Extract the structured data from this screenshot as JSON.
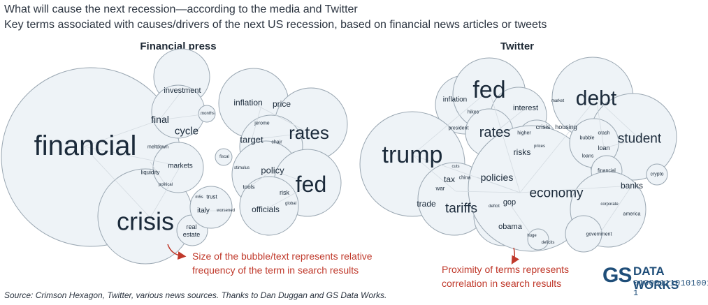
{
  "header": {
    "title": "What will cause the next recession—according to the media and Twitter",
    "subtitle": "Key terms associated with causes/drivers of the next US recession, based on financial news articles or tweets"
  },
  "panels": {
    "press": {
      "title": "Financial press"
    },
    "twitter": {
      "title": "Twitter"
    }
  },
  "notes": {
    "size_note_line1": "Size of the bubble/text represents relative",
    "size_note_line2": "frequency of the term in search results",
    "proximity_note_line1": "Proximity of terms represents",
    "proximity_note_line2": "correlation in search results"
  },
  "source": "Source: Crimson Hexagon, Twitter, various news sources. Thanks to Dan Duggan and GS Data Works.",
  "logo": {
    "mark": "GS",
    "name": "DATA WORKS",
    "binary": "010001110101001 1"
  },
  "colors": {
    "bubble_fill": "#eef3f7",
    "bubble_stroke": "#9aa7b2",
    "note_red": "#c0392b",
    "logo_blue": "#1f4e79"
  },
  "press_terms": [
    "financial",
    "crisis",
    "investment",
    "final",
    "cycle",
    "months",
    "meltdown",
    "markets",
    "liquidity",
    "political",
    "real",
    "estate",
    "m5s",
    "trust",
    "italy",
    "worsened",
    "inflation",
    "price",
    "jerome",
    "chair",
    "target",
    "rates",
    "fiscal",
    "stimulus",
    "policy",
    "tools",
    "fed",
    "risk",
    "global",
    "officials"
  ],
  "twitter_terms": [
    "trump",
    "fed",
    "inflation",
    "hikes",
    "president",
    "rates",
    "interest",
    "higher",
    "crisis",
    "risks",
    "prices",
    "debt",
    "market",
    "housing",
    "crash",
    "bubble",
    "loan",
    "loans",
    "student",
    "financial",
    "crypto",
    "cuts",
    "tax",
    "china",
    "war",
    "trade",
    "tariffs",
    "policies",
    "economy",
    "deficit",
    "gop",
    "obama",
    "huge",
    "deficits",
    "banks",
    "corporate",
    "america",
    "government"
  ]
}
